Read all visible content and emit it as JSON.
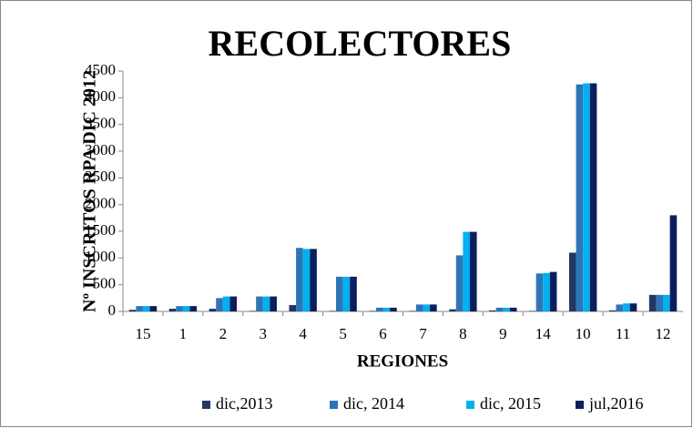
{
  "chart_data": {
    "type": "bar",
    "title": "RECOLECTORES",
    "x_label": "REGIONES",
    "y_label": "Nº INSCRITOS RPA DIC 2012",
    "categories": [
      "15",
      "1",
      "2",
      "3",
      "4",
      "5",
      "6",
      "7",
      "8",
      "9",
      "14",
      "10",
      "11",
      "12"
    ],
    "series": [
      {
        "name": "dic,2013",
        "color": "#1f3864",
        "values": [
          30,
          50,
          50,
          10,
          120,
          10,
          10,
          10,
          40,
          20,
          10,
          1100,
          20,
          310
        ]
      },
      {
        "name": "dic, 2014",
        "color": "#2e75b6",
        "values": [
          100,
          100,
          250,
          280,
          1190,
          650,
          70,
          130,
          1050,
          70,
          710,
          4250,
          130,
          310
        ]
      },
      {
        "name": "dic, 2015",
        "color": "#00b0f0",
        "values": [
          100,
          100,
          280,
          280,
          1170,
          650,
          70,
          130,
          1490,
          70,
          720,
          4270,
          150,
          310
        ]
      },
      {
        "name": "jul,2016",
        "color": "#0c1f5c",
        "values": [
          100,
          100,
          280,
          280,
          1170,
          650,
          70,
          130,
          1490,
          70,
          740,
          4270,
          150,
          1800
        ]
      }
    ],
    "ylim": [
      0,
      4500
    ],
    "yticks": [
      0,
      500,
      1000,
      1500,
      2000,
      2500,
      3000,
      3500,
      4000,
      4500
    ],
    "grid": false,
    "legend": "bottom"
  }
}
